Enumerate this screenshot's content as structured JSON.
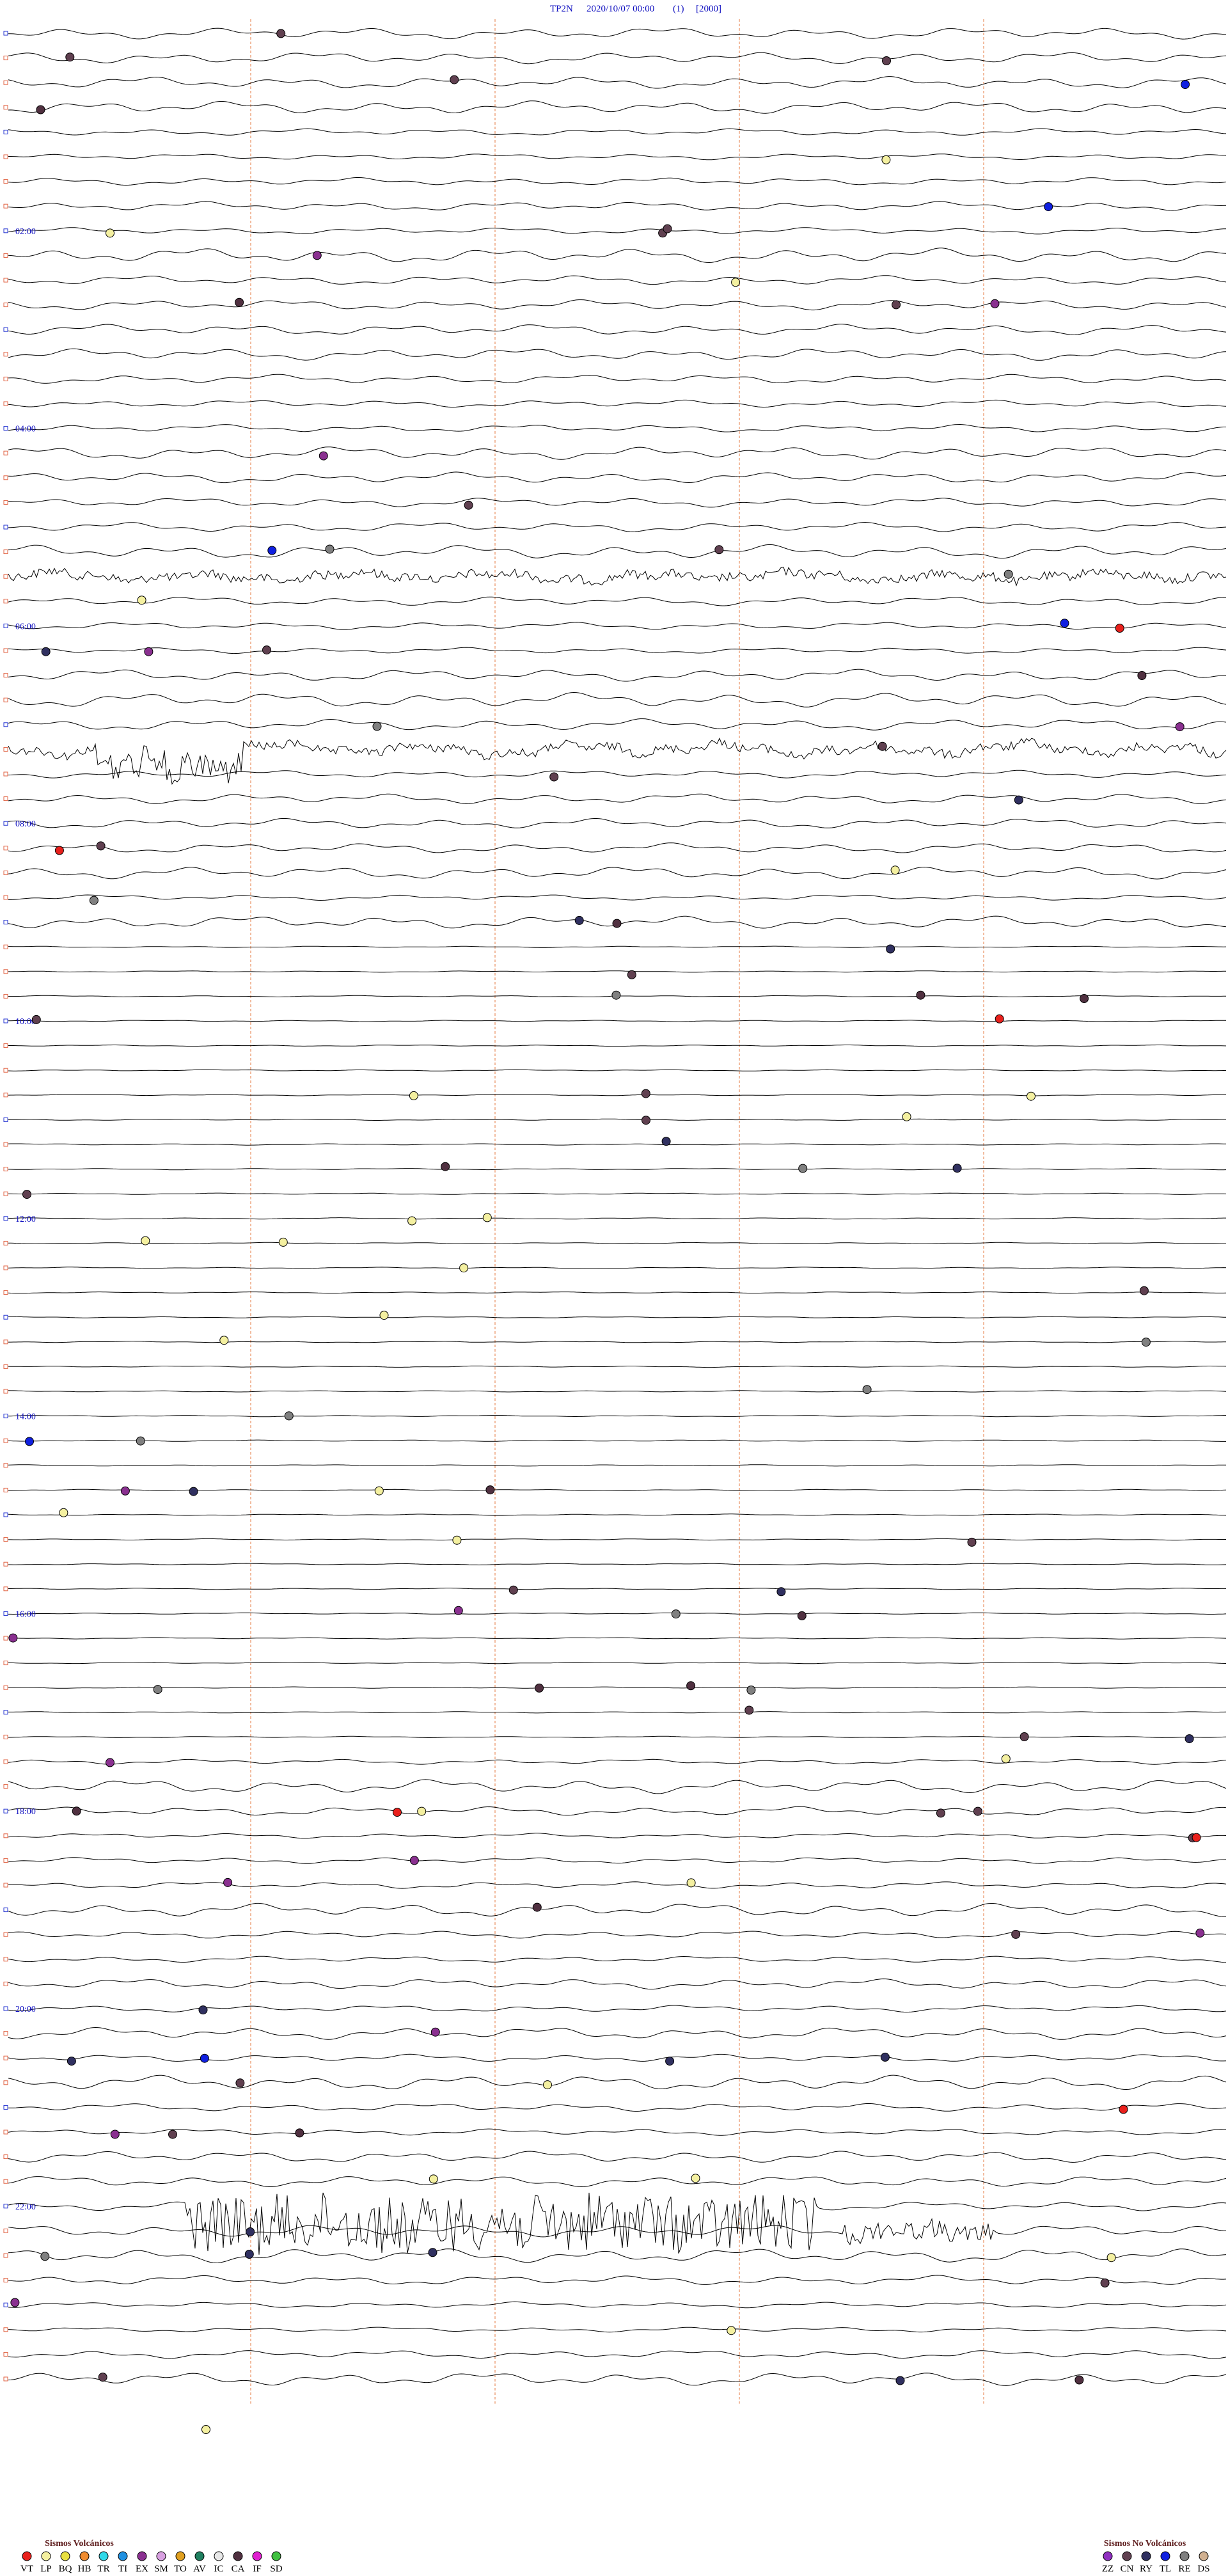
{
  "header": {
    "station": "TP2N",
    "datetime": "2020/10/07 00:00",
    "channel": "(1)",
    "scale": "[2000]"
  },
  "hour_labels": [
    "02:00",
    "04:00",
    "06:00",
    "08:00",
    "10:00",
    "12:00",
    "14:00",
    "16:00",
    "18:00",
    "20:00",
    "22:00"
  ],
  "legend_volcanic": {
    "title": "Sismos Volcánicos",
    "items": [
      {
        "name": "VT",
        "color": "#e8201c"
      },
      {
        "name": "LP",
        "color": "#f4f0a0"
      },
      {
        "name": "BQ",
        "color": "#e8e040"
      },
      {
        "name": "HB",
        "color": "#f08c30"
      },
      {
        "name": "TR",
        "color": "#30d8e8"
      },
      {
        "name": "TI",
        "color": "#2090e0"
      },
      {
        "name": "EX",
        "color": "#8a3090"
      },
      {
        "name": "SM",
        "color": "#d8a0e0"
      },
      {
        "name": "TO",
        "color": "#e0a020"
      },
      {
        "name": "AV",
        "color": "#208060"
      },
      {
        "name": "IC",
        "color": "#e8e8e8"
      },
      {
        "name": "CA",
        "color": "#503040"
      },
      {
        "name": "IF",
        "color": "#e020d0"
      },
      {
        "name": "SD",
        "color": "#40c040"
      }
    ]
  },
  "legend_nonvolcanic": {
    "title": "Sismos No Volcánicos",
    "items": [
      {
        "name": "ZZ",
        "color": "#9030c0"
      },
      {
        "name": "CN",
        "color": "#604050"
      },
      {
        "name": "RY",
        "color": "#303060"
      },
      {
        "name": "TL",
        "color": "#1020e0"
      },
      {
        "name": "RE",
        "color": "#808080"
      },
      {
        "name": "DS",
        "color": "#d0b090"
      }
    ]
  }
}
